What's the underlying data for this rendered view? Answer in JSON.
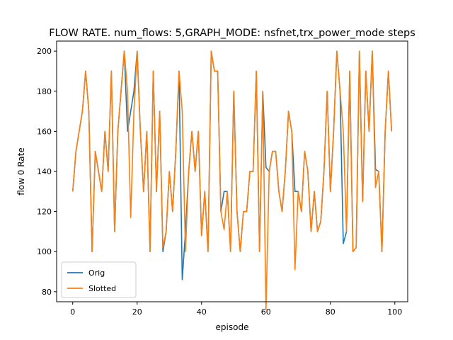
{
  "chart_data": {
    "type": "line",
    "title": "FLOW RATE. num_flows: 5,GRAPH_MODE: nsfnet,trx_power_mode steps",
    "xlabel": "episode",
    "ylabel": "flow 0 Rate",
    "xlim": [
      -5,
      104
    ],
    "ylim": [
      75,
      205
    ],
    "xticks": [
      0,
      20,
      40,
      60,
      80,
      100
    ],
    "yticks": [
      80,
      100,
      120,
      140,
      160,
      180,
      200
    ],
    "grid": false,
    "legend": "lower-left",
    "x": [
      0,
      1,
      2,
      3,
      4,
      5,
      6,
      7,
      8,
      9,
      10,
      11,
      12,
      13,
      14,
      15,
      16,
      17,
      18,
      19,
      20,
      21,
      22,
      23,
      24,
      25,
      26,
      27,
      28,
      29,
      30,
      31,
      32,
      33,
      34,
      35,
      36,
      37,
      38,
      39,
      40,
      41,
      42,
      43,
      44,
      45,
      46,
      47,
      48,
      49,
      50,
      51,
      52,
      53,
      54,
      55,
      56,
      57,
      58,
      59,
      60,
      61,
      62,
      63,
      64,
      65,
      66,
      67,
      68,
      69,
      70,
      71,
      72,
      73,
      74,
      75,
      76,
      77,
      78,
      79,
      80,
      81,
      82,
      83,
      84,
      85,
      86,
      87,
      88,
      89,
      90,
      91,
      92,
      93,
      94,
      95,
      96,
      97,
      98,
      99
    ],
    "series": [
      {
        "name": "Orig",
        "color": "#1f77b4",
        "values": [
          130,
          150,
          160,
          170,
          190,
          170,
          100,
          150,
          140,
          130,
          160,
          140,
          190,
          110,
          160,
          180,
          200,
          160,
          170,
          180,
          200,
          160,
          130,
          160,
          100,
          190,
          130,
          170,
          100,
          110,
          140,
          120,
          150,
          190,
          86,
          110,
          140,
          160,
          140,
          160,
          108,
          130,
          100,
          200,
          190,
          190,
          120,
          130,
          130,
          100,
          180,
          120,
          100,
          120,
          120,
          140,
          140,
          190,
          100,
          180,
          142,
          140,
          150,
          150,
          130,
          120,
          140,
          170,
          160,
          130,
          130,
          120,
          150,
          140,
          110,
          130,
          110,
          115,
          140,
          180,
          130,
          160,
          200,
          180,
          104,
          110,
          190,
          100,
          102,
          200,
          125,
          190,
          160,
          200,
          141,
          140,
          100,
          160,
          190,
          160
        ]
      },
      {
        "name": "Slotted",
        "color": "#ff7f0e",
        "values": [
          130,
          150,
          160,
          170,
          190,
          170,
          100,
          150,
          140,
          130,
          160,
          140,
          190,
          110,
          160,
          180,
          200,
          180,
          117,
          170,
          200,
          160,
          130,
          160,
          100,
          190,
          130,
          170,
          102,
          110,
          140,
          120,
          150,
          190,
          170,
          100,
          140,
          160,
          140,
          160,
          108,
          130,
          100,
          200,
          190,
          190,
          120,
          111,
          130,
          100,
          180,
          120,
          100,
          120,
          120,
          140,
          140,
          190,
          100,
          180,
          71,
          140,
          150,
          150,
          130,
          120,
          140,
          170,
          160,
          91,
          130,
          120,
          150,
          140,
          110,
          130,
          110,
          115,
          140,
          180,
          130,
          160,
          200,
          180,
          160,
          110,
          190,
          100,
          102,
          200,
          125,
          190,
          160,
          200,
          132,
          140,
          100,
          160,
          190,
          160
        ]
      }
    ]
  }
}
